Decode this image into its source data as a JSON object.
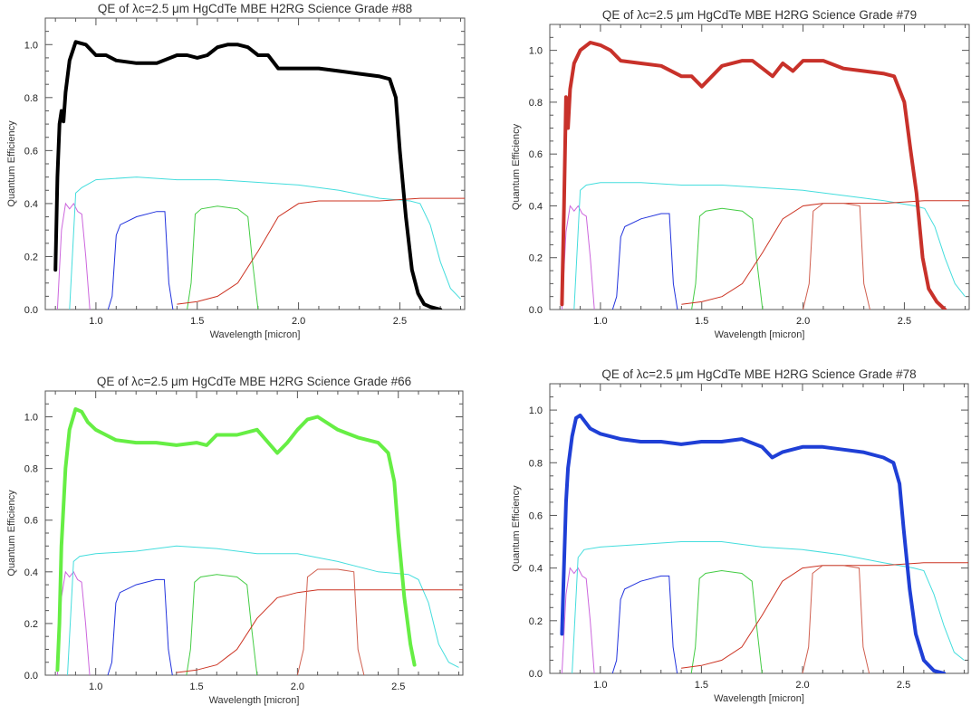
{
  "chart_data": [
    {
      "type": "line",
      "title": "QE of λc=2.5 μm HgCdTe MBE H2RG Science Grade #88",
      "xlabel": "Wavelength [micron]",
      "ylabel": "Quantum Efficiency",
      "xlim": [
        0.75,
        2.82
      ],
      "ylim": [
        0.0,
        1.1
      ],
      "xticks": [
        "1.0",
        "1.5",
        "2.0",
        "2.5"
      ],
      "yticks": [
        "0.0",
        "0.2",
        "0.4",
        "0.6",
        "0.8",
        "1.0"
      ],
      "main_color": "#000000",
      "main_series": {
        "x": [
          0.8,
          0.81,
          0.82,
          0.83,
          0.84,
          0.85,
          0.87,
          0.9,
          0.95,
          1.0,
          1.05,
          1.1,
          1.2,
          1.3,
          1.4,
          1.45,
          1.5,
          1.55,
          1.6,
          1.65,
          1.7,
          1.75,
          1.8,
          1.85,
          1.9,
          2.0,
          2.1,
          2.2,
          2.3,
          2.4,
          2.45,
          2.48,
          2.5,
          2.53,
          2.56,
          2.59,
          2.62,
          2.65,
          2.7
        ],
        "y": [
          0.15,
          0.5,
          0.7,
          0.75,
          0.71,
          0.82,
          0.94,
          1.01,
          1.0,
          0.96,
          0.96,
          0.94,
          0.93,
          0.93,
          0.96,
          0.96,
          0.95,
          0.96,
          0.99,
          1.0,
          1.0,
          0.99,
          0.96,
          0.96,
          0.91,
          0.91,
          0.91,
          0.9,
          0.89,
          0.88,
          0.87,
          0.8,
          0.6,
          0.35,
          0.15,
          0.06,
          0.02,
          0.01,
          0.0
        ]
      },
      "filter_curves": [
        {
          "color": "#cc66dd",
          "x": [
            0.81,
            0.83,
            0.85,
            0.87,
            0.89,
            0.91,
            0.93,
            0.95,
            0.97
          ],
          "y": [
            0.0,
            0.3,
            0.4,
            0.38,
            0.4,
            0.37,
            0.36,
            0.2,
            0.0
          ]
        },
        {
          "color": "#44dddd",
          "x": [
            0.87,
            0.9,
            0.93,
            1.0,
            1.2,
            1.4,
            1.6,
            1.8,
            2.0,
            2.2,
            2.4,
            2.55,
            2.6,
            2.65,
            2.7,
            2.75,
            2.8
          ],
          "y": [
            0.0,
            0.44,
            0.46,
            0.49,
            0.5,
            0.49,
            0.49,
            0.48,
            0.47,
            0.45,
            0.42,
            0.41,
            0.4,
            0.32,
            0.18,
            0.08,
            0.04
          ]
        },
        {
          "color": "#2233dd",
          "x": [
            1.06,
            1.08,
            1.1,
            1.12,
            1.2,
            1.3,
            1.34,
            1.36,
            1.38
          ],
          "y": [
            0.0,
            0.05,
            0.28,
            0.32,
            0.35,
            0.37,
            0.37,
            0.1,
            0.0
          ]
        },
        {
          "color": "#44cc44",
          "x": [
            1.45,
            1.47,
            1.49,
            1.52,
            1.6,
            1.7,
            1.75,
            1.77,
            1.8
          ],
          "y": [
            0.0,
            0.1,
            0.36,
            0.38,
            0.39,
            0.38,
            0.35,
            0.2,
            0.0
          ]
        },
        {
          "color": "#cc3322",
          "x": [
            1.4,
            1.5,
            1.6,
            1.7,
            1.8,
            1.9,
            2.0,
            2.1,
            2.2,
            2.4,
            2.6,
            2.82
          ],
          "y": [
            0.02,
            0.03,
            0.05,
            0.1,
            0.22,
            0.35,
            0.4,
            0.41,
            0.41,
            0.41,
            0.42,
            0.42
          ]
        }
      ]
    },
    {
      "type": "line",
      "title": "QE of λc=2.5 μm HgCdTe MBE H2RG Science Grade #79",
      "xlabel": "Wavelength [micron]",
      "ylabel": "Quantum Efficiency",
      "xlim": [
        0.75,
        2.82
      ],
      "ylim": [
        0.0,
        1.1
      ],
      "xticks": [
        "1.0",
        "1.5",
        "2.0",
        "2.5"
      ],
      "yticks": [
        "0.0",
        "0.2",
        "0.4",
        "0.6",
        "0.8",
        "1.0"
      ],
      "main_color": "#c8312a",
      "main_series": {
        "x": [
          0.81,
          0.82,
          0.83,
          0.84,
          0.85,
          0.87,
          0.9,
          0.95,
          1.0,
          1.05,
          1.1,
          1.2,
          1.3,
          1.4,
          1.45,
          1.5,
          1.55,
          1.6,
          1.7,
          1.75,
          1.8,
          1.85,
          1.9,
          1.95,
          2.0,
          2.1,
          2.2,
          2.3,
          2.4,
          2.45,
          2.5,
          2.53,
          2.56,
          2.59,
          2.62,
          2.66,
          2.7
        ],
        "y": [
          0.02,
          0.4,
          0.82,
          0.7,
          0.85,
          0.95,
          1.0,
          1.03,
          1.02,
          1.0,
          0.96,
          0.95,
          0.94,
          0.9,
          0.9,
          0.86,
          0.9,
          0.94,
          0.96,
          0.96,
          0.93,
          0.9,
          0.95,
          0.92,
          0.96,
          0.96,
          0.93,
          0.92,
          0.91,
          0.9,
          0.8,
          0.62,
          0.45,
          0.2,
          0.08,
          0.03,
          0.0
        ]
      },
      "filter_curves": [
        {
          "color": "#cc66dd",
          "x": [
            0.81,
            0.83,
            0.85,
            0.87,
            0.89,
            0.91,
            0.93,
            0.95,
            0.97
          ],
          "y": [
            0.0,
            0.3,
            0.4,
            0.38,
            0.4,
            0.37,
            0.36,
            0.2,
            0.0
          ]
        },
        {
          "color": "#44dddd",
          "x": [
            0.87,
            0.9,
            0.93,
            1.0,
            1.2,
            1.4,
            1.6,
            1.8,
            2.0,
            2.2,
            2.4,
            2.55,
            2.6,
            2.65,
            2.7,
            2.75,
            2.8
          ],
          "y": [
            0.0,
            0.46,
            0.48,
            0.49,
            0.49,
            0.48,
            0.48,
            0.47,
            0.46,
            0.44,
            0.42,
            0.4,
            0.39,
            0.32,
            0.2,
            0.1,
            0.05
          ]
        },
        {
          "color": "#2233dd",
          "x": [
            1.06,
            1.08,
            1.1,
            1.12,
            1.2,
            1.3,
            1.34,
            1.36,
            1.38
          ],
          "y": [
            0.0,
            0.05,
            0.28,
            0.32,
            0.35,
            0.37,
            0.37,
            0.1,
            0.0
          ]
        },
        {
          "color": "#44cc44",
          "x": [
            1.45,
            1.47,
            1.49,
            1.52,
            1.6,
            1.7,
            1.75,
            1.77,
            1.8
          ],
          "y": [
            0.0,
            0.1,
            0.36,
            0.38,
            0.39,
            0.38,
            0.35,
            0.2,
            0.0
          ]
        },
        {
          "color": "#cc3322",
          "x": [
            1.4,
            1.5,
            1.6,
            1.7,
            1.8,
            1.9,
            2.0,
            2.1,
            2.2,
            2.4,
            2.6,
            2.82
          ],
          "y": [
            0.02,
            0.03,
            0.05,
            0.1,
            0.22,
            0.35,
            0.4,
            0.41,
            0.41,
            0.41,
            0.42,
            0.42
          ]
        },
        {
          "color": "#d06050",
          "x": [
            2.0,
            2.03,
            2.05,
            2.1,
            2.2,
            2.28,
            2.3,
            2.33
          ],
          "y": [
            0.0,
            0.1,
            0.38,
            0.41,
            0.41,
            0.4,
            0.1,
            0.0
          ]
        }
      ]
    },
    {
      "type": "line",
      "title": "QE of λc=2.5 μm HgCdTe MBE H2RG Science Grade #66",
      "xlabel": "Wavelength [micron]",
      "ylabel": "Quantum Efficiency",
      "xlim": [
        0.75,
        2.82
      ],
      "ylim": [
        0.0,
        1.1
      ],
      "xticks": [
        "1.0",
        "1.5",
        "2.0",
        "2.5"
      ],
      "yticks": [
        "0.0",
        "0.2",
        "0.4",
        "0.6",
        "0.8",
        "1.0"
      ],
      "main_color": "#66ee44",
      "main_series": {
        "x": [
          0.81,
          0.82,
          0.83,
          0.85,
          0.87,
          0.9,
          0.93,
          0.96,
          1.0,
          1.05,
          1.1,
          1.2,
          1.3,
          1.4,
          1.5,
          1.55,
          1.6,
          1.7,
          1.8,
          1.9,
          1.95,
          2.0,
          2.05,
          2.1,
          2.2,
          2.3,
          2.4,
          2.45,
          2.48,
          2.5,
          2.53,
          2.56,
          2.58
        ],
        "y": [
          0.02,
          0.2,
          0.5,
          0.8,
          0.95,
          1.03,
          1.02,
          0.98,
          0.95,
          0.93,
          0.91,
          0.9,
          0.9,
          0.89,
          0.9,
          0.89,
          0.93,
          0.93,
          0.95,
          0.86,
          0.9,
          0.95,
          0.99,
          1.0,
          0.95,
          0.92,
          0.9,
          0.86,
          0.75,
          0.55,
          0.3,
          0.12,
          0.04
        ]
      },
      "filter_curves": [
        {
          "color": "#cc66dd",
          "x": [
            0.81,
            0.83,
            0.85,
            0.87,
            0.89,
            0.91,
            0.93,
            0.95,
            0.97
          ],
          "y": [
            0.0,
            0.3,
            0.4,
            0.38,
            0.4,
            0.37,
            0.36,
            0.2,
            0.0
          ]
        },
        {
          "color": "#44dddd",
          "x": [
            0.86,
            0.89,
            0.92,
            1.0,
            1.2,
            1.4,
            1.6,
            1.8,
            2.0,
            2.2,
            2.4,
            2.55,
            2.6,
            2.65,
            2.7,
            2.75,
            2.8
          ],
          "y": [
            0.0,
            0.44,
            0.46,
            0.47,
            0.48,
            0.5,
            0.49,
            0.47,
            0.47,
            0.44,
            0.4,
            0.39,
            0.37,
            0.28,
            0.12,
            0.05,
            0.03
          ]
        },
        {
          "color": "#2233dd",
          "x": [
            1.06,
            1.08,
            1.1,
            1.12,
            1.2,
            1.3,
            1.34,
            1.36,
            1.38
          ],
          "y": [
            0.0,
            0.05,
            0.28,
            0.32,
            0.35,
            0.37,
            0.37,
            0.1,
            0.0
          ]
        },
        {
          "color": "#44cc44",
          "x": [
            1.45,
            1.47,
            1.49,
            1.52,
            1.6,
            1.7,
            1.75,
            1.77,
            1.8
          ],
          "y": [
            0.0,
            0.1,
            0.36,
            0.38,
            0.39,
            0.38,
            0.35,
            0.2,
            0.0
          ]
        },
        {
          "color": "#cc3322",
          "x": [
            1.4,
            1.5,
            1.6,
            1.7,
            1.8,
            1.9,
            2.0,
            2.1,
            2.2,
            2.4,
            2.6,
            2.82
          ],
          "y": [
            0.01,
            0.02,
            0.04,
            0.1,
            0.22,
            0.3,
            0.32,
            0.33,
            0.33,
            0.33,
            0.33,
            0.33
          ]
        },
        {
          "color": "#d06050",
          "x": [
            2.0,
            2.03,
            2.05,
            2.1,
            2.2,
            2.28,
            2.3,
            2.33
          ],
          "y": [
            0.0,
            0.1,
            0.38,
            0.41,
            0.41,
            0.4,
            0.1,
            0.0
          ]
        }
      ]
    },
    {
      "type": "line",
      "title": "QE of λc=2.5 μm HgCdTe MBE H2RG Science Grade #78",
      "xlabel": "Wavelength [micron]",
      "ylabel": "Quantum Efficiency",
      "xlim": [
        0.75,
        2.82
      ],
      "ylim": [
        0.0,
        1.1
      ],
      "xticks": [
        "1.0",
        "1.5",
        "2.0",
        "2.5"
      ],
      "yticks": [
        "0.0",
        "0.2",
        "0.4",
        "0.6",
        "0.8",
        "1.0"
      ],
      "main_color": "#1f3fd6",
      "main_series": {
        "x": [
          0.81,
          0.82,
          0.83,
          0.84,
          0.86,
          0.88,
          0.9,
          0.92,
          0.95,
          1.0,
          1.1,
          1.2,
          1.3,
          1.4,
          1.5,
          1.6,
          1.7,
          1.8,
          1.85,
          1.9,
          2.0,
          2.1,
          2.2,
          2.3,
          2.4,
          2.45,
          2.48,
          2.5,
          2.53,
          2.56,
          2.6,
          2.65,
          2.7
        ],
        "y": [
          0.15,
          0.4,
          0.65,
          0.78,
          0.9,
          0.97,
          0.98,
          0.96,
          0.93,
          0.91,
          0.89,
          0.88,
          0.88,
          0.87,
          0.88,
          0.88,
          0.89,
          0.86,
          0.82,
          0.84,
          0.86,
          0.86,
          0.85,
          0.84,
          0.82,
          0.8,
          0.72,
          0.55,
          0.32,
          0.15,
          0.05,
          0.01,
          0.0
        ]
      },
      "filter_curves": [
        {
          "color": "#cc66dd",
          "x": [
            0.81,
            0.83,
            0.85,
            0.87,
            0.89,
            0.91,
            0.93,
            0.95,
            0.97
          ],
          "y": [
            0.0,
            0.3,
            0.4,
            0.38,
            0.4,
            0.37,
            0.36,
            0.2,
            0.0
          ]
        },
        {
          "color": "#44dddd",
          "x": [
            0.86,
            0.89,
            0.92,
            1.0,
            1.2,
            1.4,
            1.6,
            1.8,
            2.0,
            2.2,
            2.4,
            2.55,
            2.6,
            2.65,
            2.7,
            2.75,
            2.8
          ],
          "y": [
            0.0,
            0.44,
            0.47,
            0.48,
            0.49,
            0.5,
            0.5,
            0.48,
            0.47,
            0.45,
            0.42,
            0.4,
            0.39,
            0.3,
            0.18,
            0.08,
            0.05
          ]
        },
        {
          "color": "#2233dd",
          "x": [
            1.06,
            1.08,
            1.1,
            1.12,
            1.2,
            1.3,
            1.34,
            1.36,
            1.38
          ],
          "y": [
            0.0,
            0.05,
            0.28,
            0.32,
            0.35,
            0.37,
            0.37,
            0.1,
            0.0
          ]
        },
        {
          "color": "#44cc44",
          "x": [
            1.45,
            1.47,
            1.49,
            1.52,
            1.6,
            1.7,
            1.75,
            1.77,
            1.8
          ],
          "y": [
            0.0,
            0.1,
            0.36,
            0.38,
            0.39,
            0.38,
            0.35,
            0.2,
            0.0
          ]
        },
        {
          "color": "#cc3322",
          "x": [
            1.4,
            1.5,
            1.6,
            1.7,
            1.8,
            1.9,
            2.0,
            2.1,
            2.2,
            2.4,
            2.6,
            2.82
          ],
          "y": [
            0.02,
            0.03,
            0.05,
            0.1,
            0.22,
            0.35,
            0.4,
            0.41,
            0.41,
            0.41,
            0.42,
            0.42
          ]
        },
        {
          "color": "#d06050",
          "x": [
            2.0,
            2.03,
            2.05,
            2.1,
            2.2,
            2.28,
            2.3,
            2.33
          ],
          "y": [
            0.0,
            0.1,
            0.38,
            0.41,
            0.41,
            0.4,
            0.1,
            0.0
          ]
        }
      ]
    }
  ]
}
